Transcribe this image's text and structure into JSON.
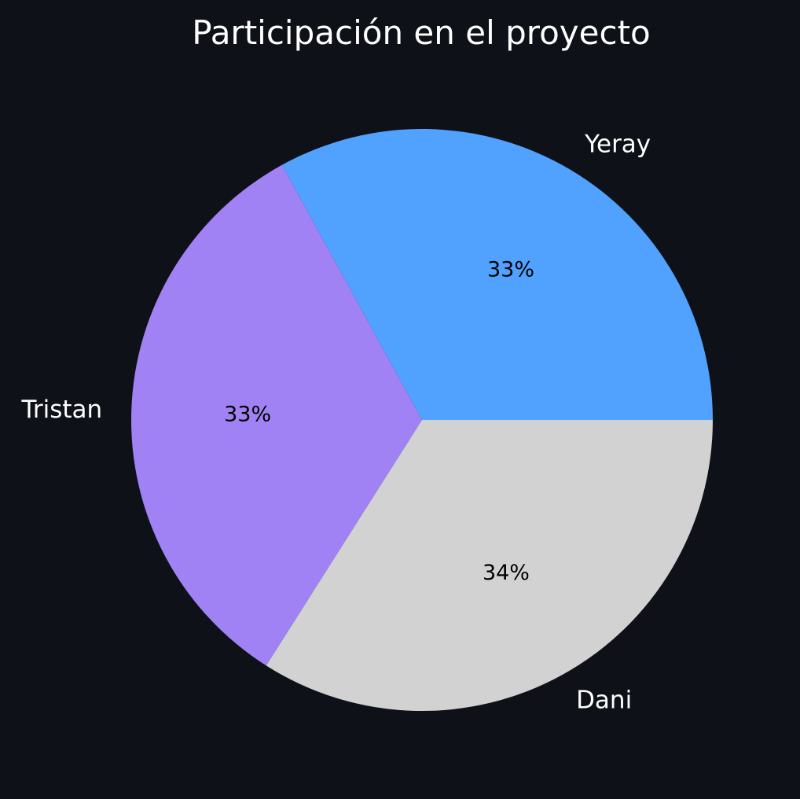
{
  "chart_data": {
    "type": "pie",
    "title": "Participación en el proyecto",
    "start_angle_deg": 0,
    "direction": "counterclockwise",
    "slices": [
      {
        "label": "Yeray",
        "value": 33,
        "pct_label": "33%",
        "color": "#51a1ff"
      },
      {
        "label": "Tristan",
        "value": 33,
        "pct_label": "33%",
        "color": "#a082f4"
      },
      {
        "label": "Dani",
        "value": 34,
        "pct_label": "34%",
        "color": "#d2d2d2"
      }
    ],
    "background": "#0e1117"
  }
}
